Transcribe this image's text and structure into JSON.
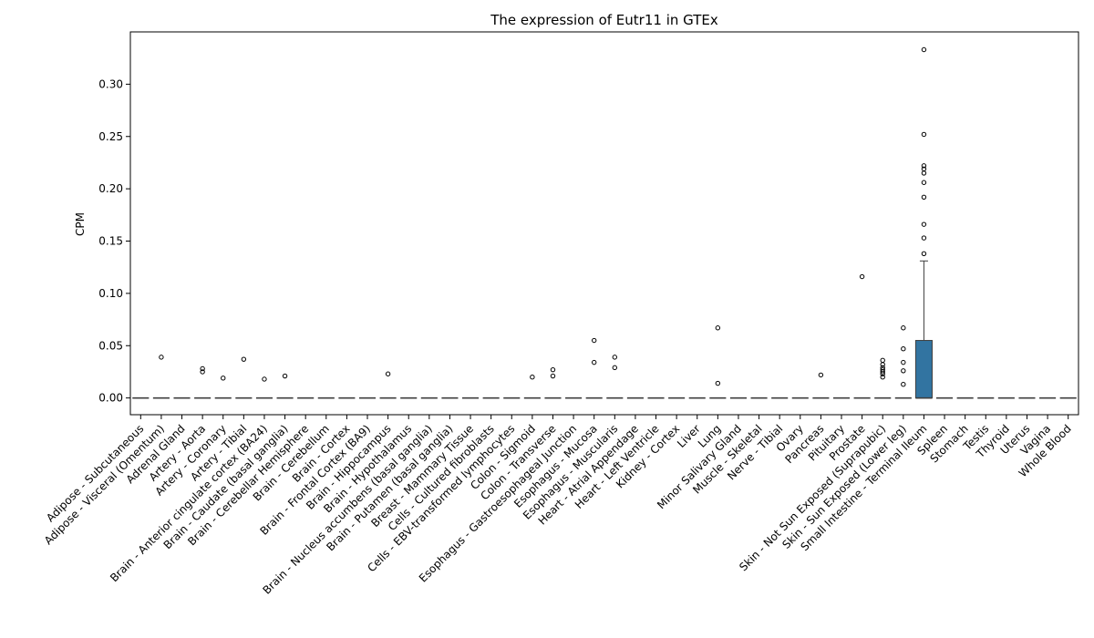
{
  "chart_data": {
    "type": "box",
    "title": "The expression of Eutr11 in GTEx",
    "xlabel": "",
    "ylabel": "CPM",
    "ylim": [
      -0.016,
      0.35
    ],
    "yticks": [
      0.0,
      0.05,
      0.1,
      0.15,
      0.2,
      0.25,
      0.3
    ],
    "ytick_labels": [
      "0.00",
      "0.05",
      "0.10",
      "0.15",
      "0.20",
      "0.25",
      "0.30"
    ],
    "grid": false,
    "box_color": "#3274a1",
    "categories": [
      "Adipose - Subcutaneous",
      "Adipose - Visceral (Omentum)",
      "Adrenal Gland",
      "Artery - Aorta",
      "Artery - Coronary",
      "Artery - Tibial",
      "Brain - Anterior cingulate cortex (BA24)",
      "Brain - Caudate (basal ganglia)",
      "Brain - Cerebellar Hemisphere",
      "Brain - Cerebellum",
      "Brain - Cortex",
      "Brain - Frontal Cortex (BA9)",
      "Brain - Hippocampus",
      "Brain - Hypothalamus",
      "Brain - Nucleus accumbens (basal ganglia)",
      "Brain - Putamen (basal ganglia)",
      "Breast - Mammary Tissue",
      "Cells - Cultured fibroblasts",
      "Cells - EBV-transformed lymphocytes",
      "Colon - Sigmoid",
      "Colon - Transverse",
      "Esophagus - Gastroesophageal Junction",
      "Esophagus - Mucosa",
      "Esophagus - Muscularis",
      "Heart - Atrial Appendage",
      "Heart - Left Ventricle",
      "Kidney - Cortex",
      "Liver",
      "Lung",
      "Minor Salivary Gland",
      "Muscle - Skeletal",
      "Nerve - Tibial",
      "Ovary",
      "Pancreas",
      "Pituitary",
      "Prostate",
      "Skin - Not Sun Exposed (Suprapubic)",
      "Skin - Sun Exposed (Lower leg)",
      "Small Intestine - Terminal Ileum",
      "Spleen",
      "Stomach",
      "Testis",
      "Thyroid",
      "Uterus",
      "Vagina",
      "Whole Blood"
    ],
    "boxes": [
      {
        "q1": 0,
        "median": 0,
        "q3": 0,
        "whisker_low": 0,
        "whisker_high": 0,
        "outliers": []
      },
      {
        "q1": 0,
        "median": 0,
        "q3": 0,
        "whisker_low": 0,
        "whisker_high": 0,
        "outliers": [
          0.039
        ]
      },
      {
        "q1": 0,
        "median": 0,
        "q3": 0,
        "whisker_low": 0,
        "whisker_high": 0,
        "outliers": []
      },
      {
        "q1": 0,
        "median": 0,
        "q3": 0,
        "whisker_low": 0,
        "whisker_high": 0,
        "outliers": [
          0.028,
          0.025
        ]
      },
      {
        "q1": 0,
        "median": 0,
        "q3": 0,
        "whisker_low": 0,
        "whisker_high": 0,
        "outliers": [
          0.019
        ]
      },
      {
        "q1": 0,
        "median": 0,
        "q3": 0,
        "whisker_low": 0,
        "whisker_high": 0,
        "outliers": [
          0.037
        ]
      },
      {
        "q1": 0,
        "median": 0,
        "q3": 0,
        "whisker_low": 0,
        "whisker_high": 0,
        "outliers": [
          0.018
        ]
      },
      {
        "q1": 0,
        "median": 0,
        "q3": 0,
        "whisker_low": 0,
        "whisker_high": 0,
        "outliers": [
          0.021
        ]
      },
      {
        "q1": 0,
        "median": 0,
        "q3": 0,
        "whisker_low": 0,
        "whisker_high": 0,
        "outliers": []
      },
      {
        "q1": 0,
        "median": 0,
        "q3": 0,
        "whisker_low": 0,
        "whisker_high": 0,
        "outliers": []
      },
      {
        "q1": 0,
        "median": 0,
        "q3": 0,
        "whisker_low": 0,
        "whisker_high": 0,
        "outliers": []
      },
      {
        "q1": 0,
        "median": 0,
        "q3": 0,
        "whisker_low": 0,
        "whisker_high": 0,
        "outliers": []
      },
      {
        "q1": 0,
        "median": 0,
        "q3": 0,
        "whisker_low": 0,
        "whisker_high": 0,
        "outliers": [
          0.023
        ]
      },
      {
        "q1": 0,
        "median": 0,
        "q3": 0,
        "whisker_low": 0,
        "whisker_high": 0,
        "outliers": []
      },
      {
        "q1": 0,
        "median": 0,
        "q3": 0,
        "whisker_low": 0,
        "whisker_high": 0,
        "outliers": []
      },
      {
        "q1": 0,
        "median": 0,
        "q3": 0,
        "whisker_low": 0,
        "whisker_high": 0,
        "outliers": []
      },
      {
        "q1": 0,
        "median": 0,
        "q3": 0,
        "whisker_low": 0,
        "whisker_high": 0,
        "outliers": []
      },
      {
        "q1": 0,
        "median": 0,
        "q3": 0,
        "whisker_low": 0,
        "whisker_high": 0,
        "outliers": []
      },
      {
        "q1": 0,
        "median": 0,
        "q3": 0,
        "whisker_low": 0,
        "whisker_high": 0,
        "outliers": []
      },
      {
        "q1": 0,
        "median": 0,
        "q3": 0,
        "whisker_low": 0,
        "whisker_high": 0,
        "outliers": [
          0.02
        ]
      },
      {
        "q1": 0,
        "median": 0,
        "q3": 0,
        "whisker_low": 0,
        "whisker_high": 0,
        "outliers": [
          0.027,
          0.021
        ]
      },
      {
        "q1": 0,
        "median": 0,
        "q3": 0,
        "whisker_low": 0,
        "whisker_high": 0,
        "outliers": []
      },
      {
        "q1": 0,
        "median": 0,
        "q3": 0,
        "whisker_low": 0,
        "whisker_high": 0,
        "outliers": [
          0.055,
          0.034
        ]
      },
      {
        "q1": 0,
        "median": 0,
        "q3": 0,
        "whisker_low": 0,
        "whisker_high": 0,
        "outliers": [
          0.039,
          0.029
        ]
      },
      {
        "q1": 0,
        "median": 0,
        "q3": 0,
        "whisker_low": 0,
        "whisker_high": 0,
        "outliers": []
      },
      {
        "q1": 0,
        "median": 0,
        "q3": 0,
        "whisker_low": 0,
        "whisker_high": 0,
        "outliers": []
      },
      {
        "q1": 0,
        "median": 0,
        "q3": 0,
        "whisker_low": 0,
        "whisker_high": 0,
        "outliers": []
      },
      {
        "q1": 0,
        "median": 0,
        "q3": 0,
        "whisker_low": 0,
        "whisker_high": 0,
        "outliers": []
      },
      {
        "q1": 0,
        "median": 0,
        "q3": 0,
        "whisker_low": 0,
        "whisker_high": 0,
        "outliers": [
          0.067,
          0.014
        ]
      },
      {
        "q1": 0,
        "median": 0,
        "q3": 0,
        "whisker_low": 0,
        "whisker_high": 0,
        "outliers": []
      },
      {
        "q1": 0,
        "median": 0,
        "q3": 0,
        "whisker_low": 0,
        "whisker_high": 0,
        "outliers": []
      },
      {
        "q1": 0,
        "median": 0,
        "q3": 0,
        "whisker_low": 0,
        "whisker_high": 0,
        "outliers": []
      },
      {
        "q1": 0,
        "median": 0,
        "q3": 0,
        "whisker_low": 0,
        "whisker_high": 0,
        "outliers": []
      },
      {
        "q1": 0,
        "median": 0,
        "q3": 0,
        "whisker_low": 0,
        "whisker_high": 0,
        "outliers": [
          0.022
        ]
      },
      {
        "q1": 0,
        "median": 0,
        "q3": 0,
        "whisker_low": 0,
        "whisker_high": 0,
        "outliers": []
      },
      {
        "q1": 0,
        "median": 0,
        "q3": 0,
        "whisker_low": 0,
        "whisker_high": 0,
        "outliers": [
          0.116
        ]
      },
      {
        "q1": 0,
        "median": 0,
        "q3": 0,
        "whisker_low": 0,
        "whisker_high": 0,
        "outliers": [
          0.036,
          0.032,
          0.029,
          0.027,
          0.025,
          0.023,
          0.02
        ]
      },
      {
        "q1": 0,
        "median": 0,
        "q3": 0,
        "whisker_low": 0,
        "whisker_high": 0,
        "outliers": [
          0.067,
          0.047,
          0.034,
          0.026,
          0.013
        ]
      },
      {
        "q1": 0,
        "median": 0,
        "q3": 0.055,
        "whisker_low": 0,
        "whisker_high": 0.131,
        "outliers": [
          0.333,
          0.252,
          0.222,
          0.219,
          0.215,
          0.206,
          0.192,
          0.166,
          0.153,
          0.138
        ]
      },
      {
        "q1": 0,
        "median": 0,
        "q3": 0,
        "whisker_low": 0,
        "whisker_high": 0,
        "outliers": []
      },
      {
        "q1": 0,
        "median": 0,
        "q3": 0,
        "whisker_low": 0,
        "whisker_high": 0,
        "outliers": []
      },
      {
        "q1": 0,
        "median": 0,
        "q3": 0,
        "whisker_low": 0,
        "whisker_high": 0,
        "outliers": []
      },
      {
        "q1": 0,
        "median": 0,
        "q3": 0,
        "whisker_low": 0,
        "whisker_high": 0,
        "outliers": []
      },
      {
        "q1": 0,
        "median": 0,
        "q3": 0,
        "whisker_low": 0,
        "whisker_high": 0,
        "outliers": []
      },
      {
        "q1": 0,
        "median": 0,
        "q3": 0,
        "whisker_low": 0,
        "whisker_high": 0,
        "outliers": []
      },
      {
        "q1": 0,
        "median": 0,
        "q3": 0,
        "whisker_low": 0,
        "whisker_high": 0,
        "outliers": []
      }
    ]
  }
}
